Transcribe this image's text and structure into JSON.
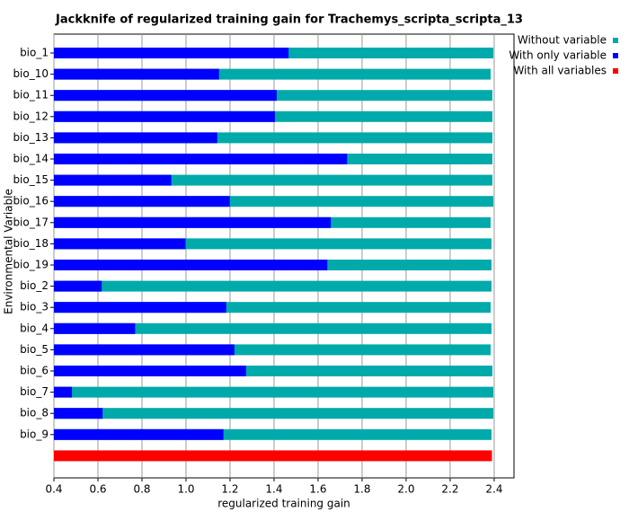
{
  "chart_data": {
    "type": "bar",
    "orientation": "horizontal",
    "title": "Jackknife of regularized training gain for Trachemys_scripta_scripta_13",
    "xlabel": "regularized training gain",
    "ylabel": "Environmental Variable",
    "categories": [
      "bio_1",
      "bio_10",
      "bio_11",
      "bio_12",
      "bio_13",
      "bio_14",
      "bio_15",
      "bio_16",
      "bio_17",
      "bio_18",
      "bio_19",
      "bio_2",
      "bio_3",
      "bio_4",
      "bio_5",
      "bio_6",
      "bio_7",
      "bio_8",
      "bio_9"
    ],
    "series": [
      {
        "name": "Without variable",
        "color": "#00aaaa",
        "values": [
          2.396,
          2.384,
          2.392,
          2.392,
          2.392,
          2.392,
          2.392,
          2.396,
          2.384,
          2.388,
          2.388,
          2.388,
          2.384,
          2.388,
          2.384,
          2.392,
          2.396,
          2.396,
          2.388
        ]
      },
      {
        "name": "With only variable",
        "color": "#0000ff",
        "values": [
          1.466,
          1.15,
          1.412,
          1.404,
          1.142,
          1.732,
          0.933,
          1.199,
          1.658,
          0.998,
          1.642,
          0.617,
          1.183,
          0.769,
          1.22,
          1.273,
          0.482,
          0.621,
          1.17
        ]
      }
    ],
    "all_variables": {
      "name": "With all variables",
      "color": "#ff0000",
      "value": 2.39
    },
    "xlim": [
      0.4,
      2.49
    ],
    "xticks": [
      0.4,
      0.6,
      0.8,
      {
        "value": 1.0,
        "label": "1.0"
      },
      1.2,
      1.4,
      1.6,
      1.8,
      {
        "value": 2.0,
        "label": "2.0"
      },
      2.2,
      2.4
    ],
    "grid": true
  }
}
